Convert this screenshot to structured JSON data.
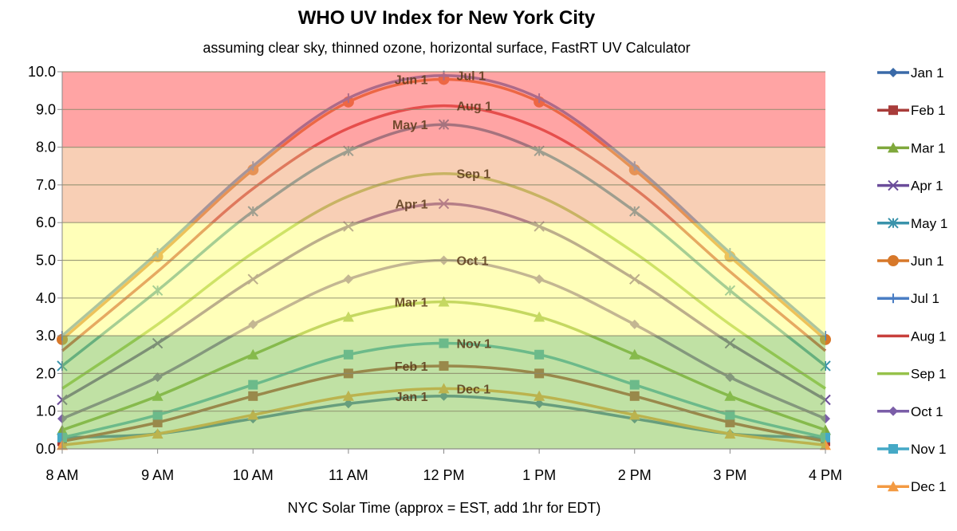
{
  "chart_data": {
    "type": "line",
    "title": "WHO UV Index for New York City",
    "subtitle": "assuming clear sky, thinned ozone, horizontal surface, FastRT UV Calculator",
    "xlabel": "NYC Solar Time (approx = EST, add 1hr for EDT)",
    "ylabel": "",
    "ylim": [
      0,
      10
    ],
    "yticks": [
      "0.0",
      "1.0",
      "2.0",
      "3.0",
      "4.0",
      "5.0",
      "6.0",
      "7.0",
      "8.0",
      "9.0",
      "10.0"
    ],
    "categories": [
      "8 AM",
      "9 AM",
      "10 AM",
      "11 AM",
      "12 PM",
      "1 PM",
      "2 PM",
      "3 PM",
      "4 PM"
    ],
    "legend_position": "right",
    "bands": [
      {
        "from": 0,
        "to": 3,
        "color": "#8cc85a"
      },
      {
        "from": 3,
        "to": 6,
        "color": "#ffff80"
      },
      {
        "from": 6,
        "to": 8,
        "color": "#f2a878"
      },
      {
        "from": 8,
        "to": 10,
        "color": "#ff5a5a"
      }
    ],
    "series": [
      {
        "name": "Jan 1",
        "color": "#3a6aa8",
        "marker": "diamond",
        "label_side": "left",
        "values": [
          0.3,
          0.4,
          0.8,
          1.2,
          1.4,
          1.2,
          0.8,
          0.4,
          0.3
        ]
      },
      {
        "name": "Feb 1",
        "color": "#a83c3a",
        "marker": "square",
        "label_side": "left",
        "values": [
          0.2,
          0.7,
          1.4,
          2.0,
          2.2,
          2.0,
          1.4,
          0.7,
          0.2
        ]
      },
      {
        "name": "Mar 1",
        "color": "#7fa83c",
        "marker": "triangle",
        "label_side": "left",
        "values": [
          0.5,
          1.4,
          2.5,
          3.5,
          3.9,
          3.5,
          2.5,
          1.4,
          0.5
        ]
      },
      {
        "name": "Apr 1",
        "color": "#6b4c9a",
        "marker": "x",
        "label_side": "left",
        "values": [
          1.3,
          2.8,
          4.5,
          5.9,
          6.5,
          5.9,
          4.5,
          2.8,
          1.3
        ]
      },
      {
        "name": "May 1",
        "color": "#3a93ab",
        "marker": "asterisk",
        "label_side": "left",
        "values": [
          2.2,
          4.2,
          6.3,
          7.9,
          8.6,
          7.9,
          6.3,
          4.2,
          2.2
        ]
      },
      {
        "name": "Jun 1",
        "color": "#d7782a",
        "marker": "circle",
        "label_side": "left",
        "values": [
          2.9,
          5.1,
          7.4,
          9.2,
          9.8,
          9.2,
          7.4,
          5.1,
          2.9
        ]
      },
      {
        "name": "Jul 1",
        "color": "#4a7ec4",
        "marker": "plus",
        "label_side": "right",
        "values": [
          3.0,
          5.2,
          7.5,
          9.3,
          9.9,
          9.3,
          7.5,
          5.2,
          3.0
        ]
      },
      {
        "name": "Aug 1",
        "color": "#c8403c",
        "marker": "none",
        "label_side": "right",
        "values": [
          2.6,
          4.7,
          6.9,
          8.5,
          9.1,
          8.5,
          6.9,
          4.7,
          2.6
        ]
      },
      {
        "name": "Sep 1",
        "color": "#96c24a",
        "marker": "none",
        "label_side": "right",
        "values": [
          1.6,
          3.3,
          5.2,
          6.7,
          7.3,
          6.7,
          5.2,
          3.3,
          1.6
        ]
      },
      {
        "name": "Oct 1",
        "color": "#7b5ea8",
        "marker": "diamond",
        "label_side": "right",
        "values": [
          0.8,
          1.9,
          3.3,
          4.5,
          5.0,
          4.5,
          3.3,
          1.9,
          0.8
        ]
      },
      {
        "name": "Nov 1",
        "color": "#45a9c6",
        "marker": "square",
        "label_side": "right",
        "values": [
          0.3,
          0.9,
          1.7,
          2.5,
          2.8,
          2.5,
          1.7,
          0.9,
          0.3
        ]
      },
      {
        "name": "Dec 1",
        "color": "#f39a42",
        "marker": "triangle",
        "label_side": "right",
        "values": [
          0.1,
          0.4,
          0.9,
          1.4,
          1.6,
          1.4,
          0.9,
          0.4,
          0.1
        ]
      }
    ]
  }
}
